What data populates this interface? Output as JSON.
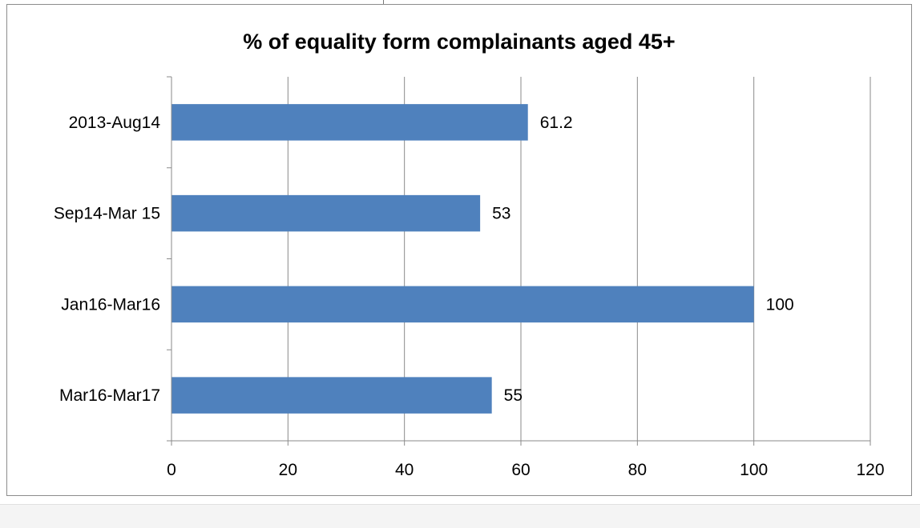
{
  "chart_data": {
    "type": "bar",
    "orientation": "horizontal",
    "title": "% of equality form complainants aged 45+",
    "categories": [
      "2013-Aug14",
      "Sep14-Mar 15",
      "Jan16-Mar16",
      "Mar16-Mar17"
    ],
    "values": [
      61.2,
      53,
      100,
      55
    ],
    "data_labels": [
      "61.2",
      "53",
      "100",
      "55"
    ],
    "xlim": [
      0,
      120
    ],
    "x_ticks": [
      0,
      20,
      40,
      60,
      80,
      100,
      120
    ],
    "grid": "vertical major gridlines",
    "legend": "none",
    "bar_color": "#4f81bd"
  }
}
